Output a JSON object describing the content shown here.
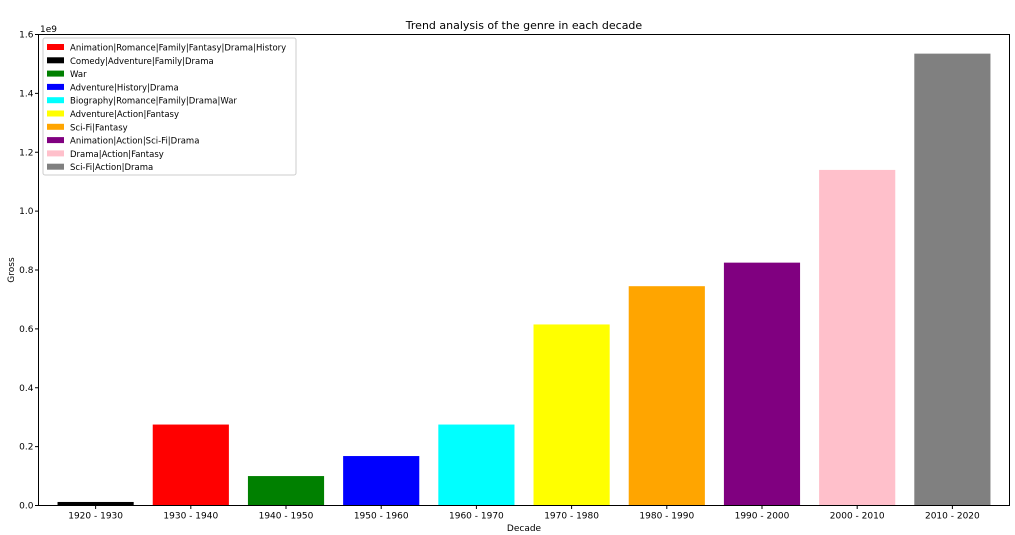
{
  "chart_data": {
    "type": "bar",
    "title": "Trend analysis of the genre in each decade",
    "xlabel": "Decade",
    "ylabel": "Gross",
    "y_offset_text": "1e9",
    "ylim": [
      0,
      1.6
    ],
    "yticks": [
      "0.0",
      "0.2",
      "0.4",
      "0.6",
      "0.8",
      "1.0",
      "1.2",
      "1.4",
      "1.6"
    ],
    "grid": false,
    "legend_position": "top-left",
    "categories": [
      "1920 - 1930",
      "1930 - 1940",
      "1940 - 1950",
      "1950 - 1960",
      "1960 - 1970",
      "1970 - 1980",
      "1980 - 1990",
      "1990 - 2000",
      "2000 - 2010",
      "2010 - 2020"
    ],
    "values": [
      0.012,
      0.275,
      0.1,
      0.168,
      0.275,
      0.615,
      0.745,
      0.825,
      1.14,
      1.535
    ],
    "bar_colors": [
      "#000000",
      "#ff0000",
      "#008000",
      "#0000ff",
      "#00ffff",
      "#ffff00",
      "#ffa500",
      "#800080",
      "#ffc0cb",
      "#808080"
    ],
    "legend": [
      {
        "label": "Animation|Romance|Family|Fantasy|Drama|History",
        "color": "#ff0000"
      },
      {
        "label": "Comedy|Adventure|Family|Drama",
        "color": "#000000"
      },
      {
        "label": "War",
        "color": "#008000"
      },
      {
        "label": "Adventure|History|Drama",
        "color": "#0000ff"
      },
      {
        "label": "Biography|Romance|Family|Drama|War",
        "color": "#00ffff"
      },
      {
        "label": "Adventure|Action|Fantasy",
        "color": "#ffff00"
      },
      {
        "label": "Sci-Fi|Fantasy",
        "color": "#ffa500"
      },
      {
        "label": "Animation|Action|Sci-Fi|Drama",
        "color": "#800080"
      },
      {
        "label": "Drama|Action|Fantasy",
        "color": "#ffc0cb"
      },
      {
        "label": "Sci-Fi|Action|Drama",
        "color": "#808080"
      }
    ]
  }
}
